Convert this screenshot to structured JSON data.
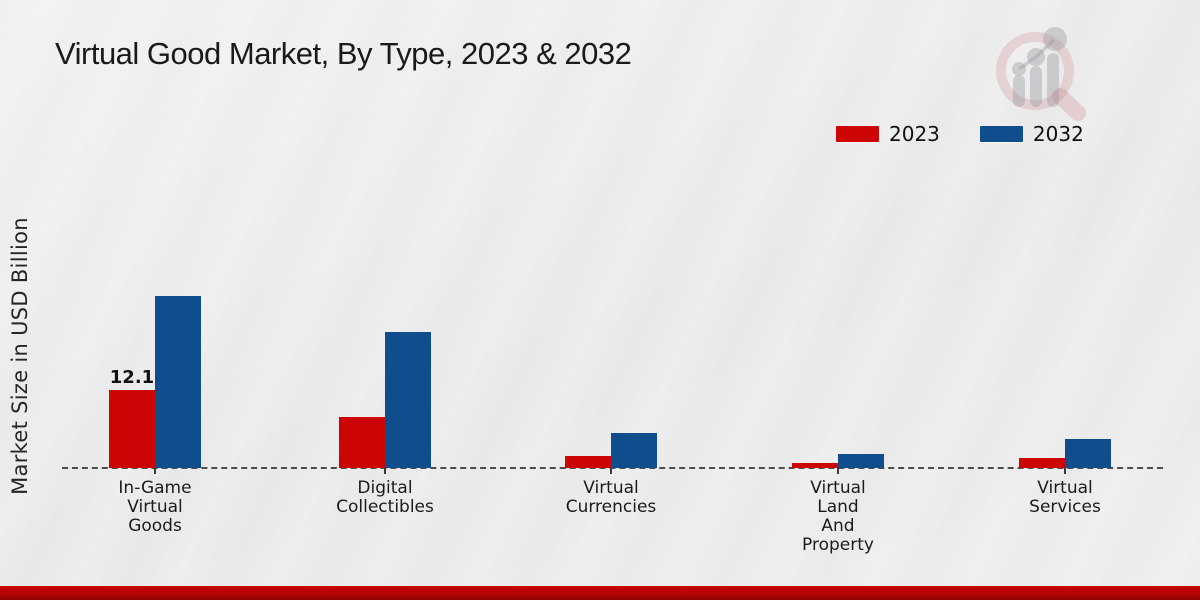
{
  "header": {
    "title": "Virtual Good Market, By Type, 2023 & 2032"
  },
  "legend": {
    "items": [
      {
        "label": "2023",
        "color": "#cc0606"
      },
      {
        "label": "2032",
        "color": "#0f4d8d"
      }
    ]
  },
  "watermark": {
    "icon": "magnifier-growth-chart-logo",
    "ring_color": "rgba(190,100,110,0.20)",
    "bars_color": "rgba(150,150,158,0.38)"
  },
  "chart_data": {
    "type": "bar",
    "title": "Virtual Good Market, By Type, 2023 & 2032",
    "xlabel": "",
    "ylabel": "Market Size in USD Billion",
    "categories": [
      "In-Game Virtual Goods",
      "Digital Collectibles",
      "Virtual Currencies",
      "Virtual Land And Property",
      "Virtual Services"
    ],
    "category_lines": [
      "In-Game\nVirtual\nGoods",
      "Digital\nCollectibles",
      "Virtual\nCurrencies",
      "Virtual\nLand\nAnd\nProperty",
      "Virtual\nServices"
    ],
    "series": [
      {
        "name": "2023",
        "color": "#cc0606",
        "values": [
          12.1,
          7.9,
          1.9,
          0.8,
          1.6
        ]
      },
      {
        "name": "2032",
        "color": "#0f4d8d",
        "values": [
          26.7,
          21.1,
          5.4,
          2.2,
          4.5
        ]
      }
    ],
    "annotations": [
      {
        "text": "12.1",
        "series_index": 0,
        "category_index": 0
      }
    ],
    "ylim": [
      0,
      30
    ],
    "grid": "off",
    "axis_line": "dashed-baseline",
    "legend_position": "top-right"
  },
  "footer": {
    "accent_top": "#c50606",
    "accent_bottom": "#8f0202"
  }
}
